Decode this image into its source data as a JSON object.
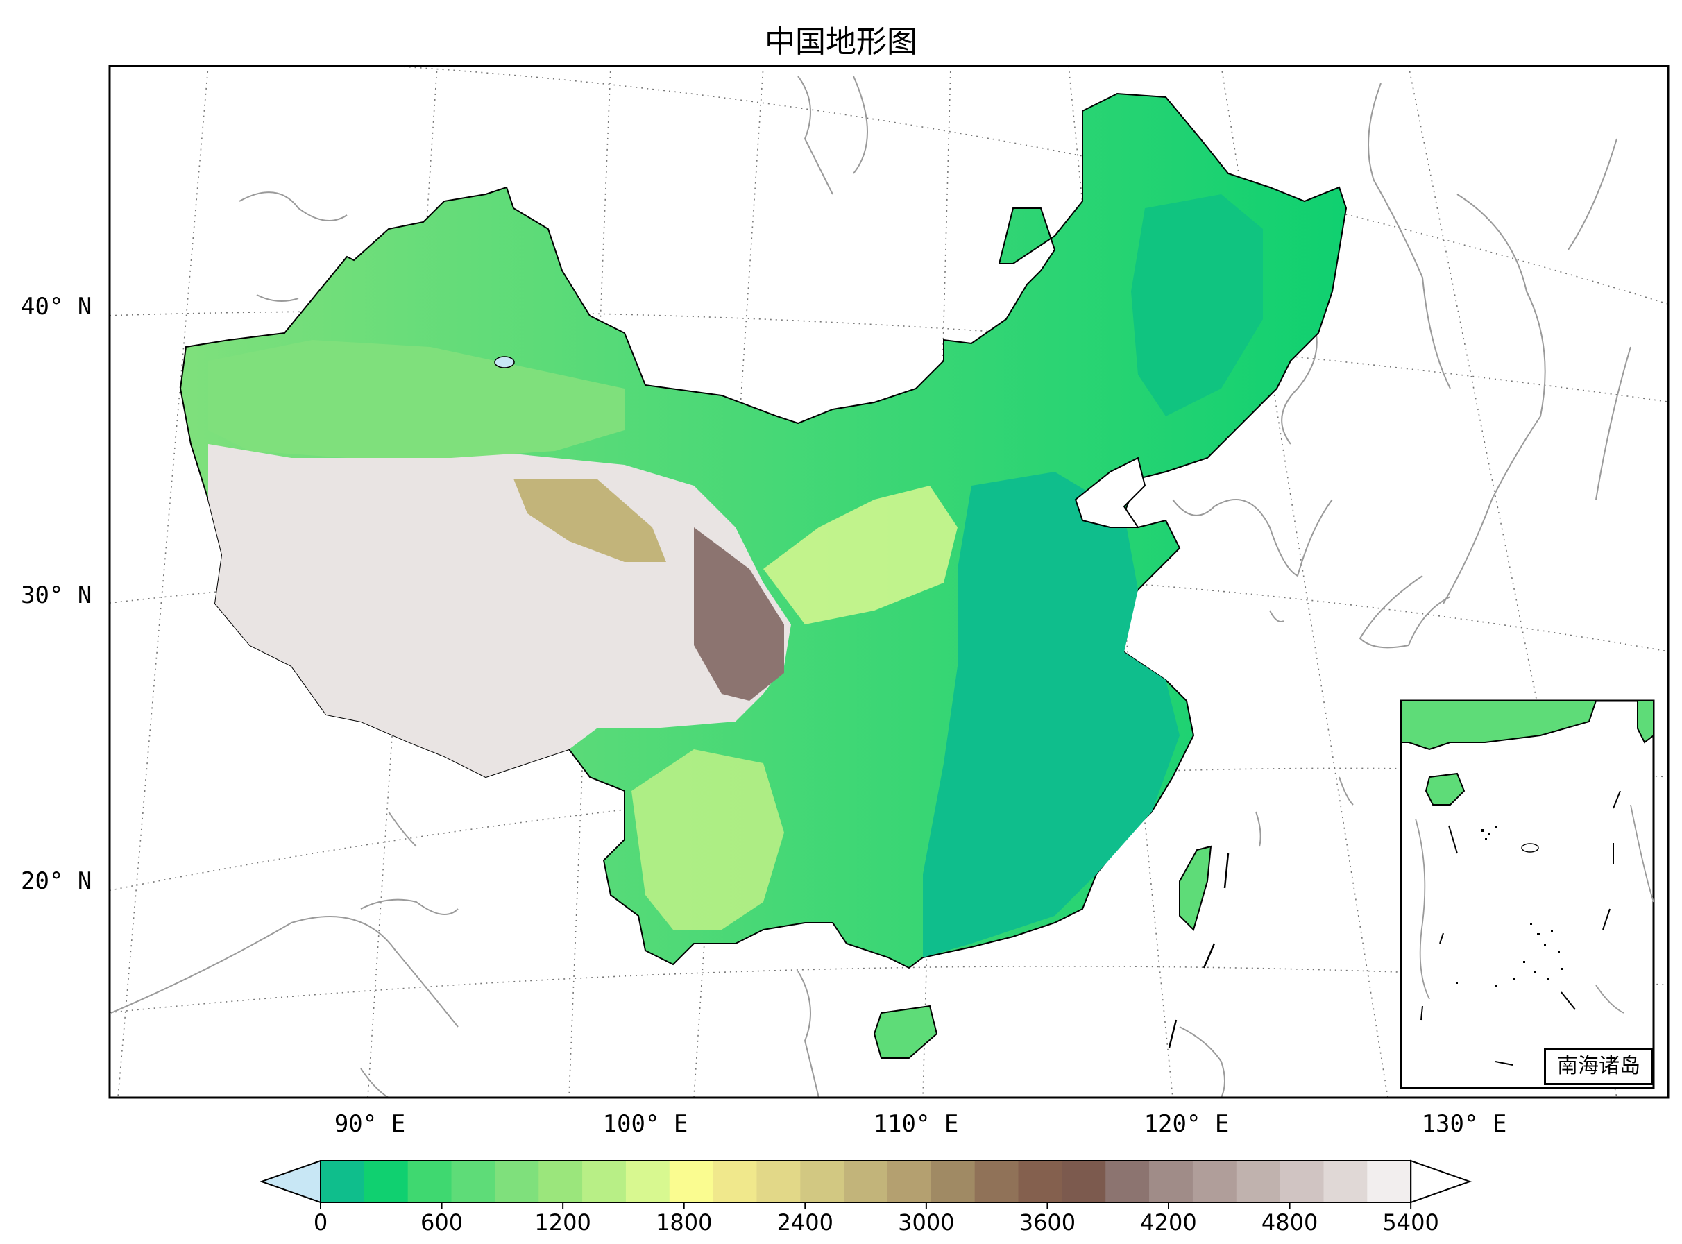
{
  "title": "中国地形图",
  "lat_labels": [
    "40° N",
    "30° N",
    "20° N"
  ],
  "lon_labels": [
    "90° E",
    "100° E",
    "110° E",
    "120° E",
    "130° E"
  ],
  "colorbar": {
    "ticks": [
      "0",
      "600",
      "1200",
      "1800",
      "2400",
      "3000",
      "3600",
      "4200",
      "4800",
      "5400"
    ],
    "min": 0,
    "max": 5400,
    "step": 300,
    "extend": "both",
    "under_color": "#c8e7f5",
    "colors": [
      "#0fbe8c",
      "#10d070",
      "#3fd870",
      "#5edc78",
      "#7fe07c",
      "#9be67c",
      "#b8ef86",
      "#d8f890",
      "#fafc90",
      "#f0e88c",
      "#e2d888",
      "#d2c882",
      "#c2b47a",
      "#b4a070",
      "#a08a64",
      "#907258",
      "#84604e",
      "#7c5a4e",
      "#8c7470",
      "#a08c88",
      "#b09e9a",
      "#c0b2ae",
      "#d0c4c2",
      "#e0d8d6",
      "#f2eeee",
      "#ffffff"
    ]
  },
  "inset": {
    "label": "南海诸岛"
  },
  "icons": {
    "map": "map-of-china-terrain"
  }
}
